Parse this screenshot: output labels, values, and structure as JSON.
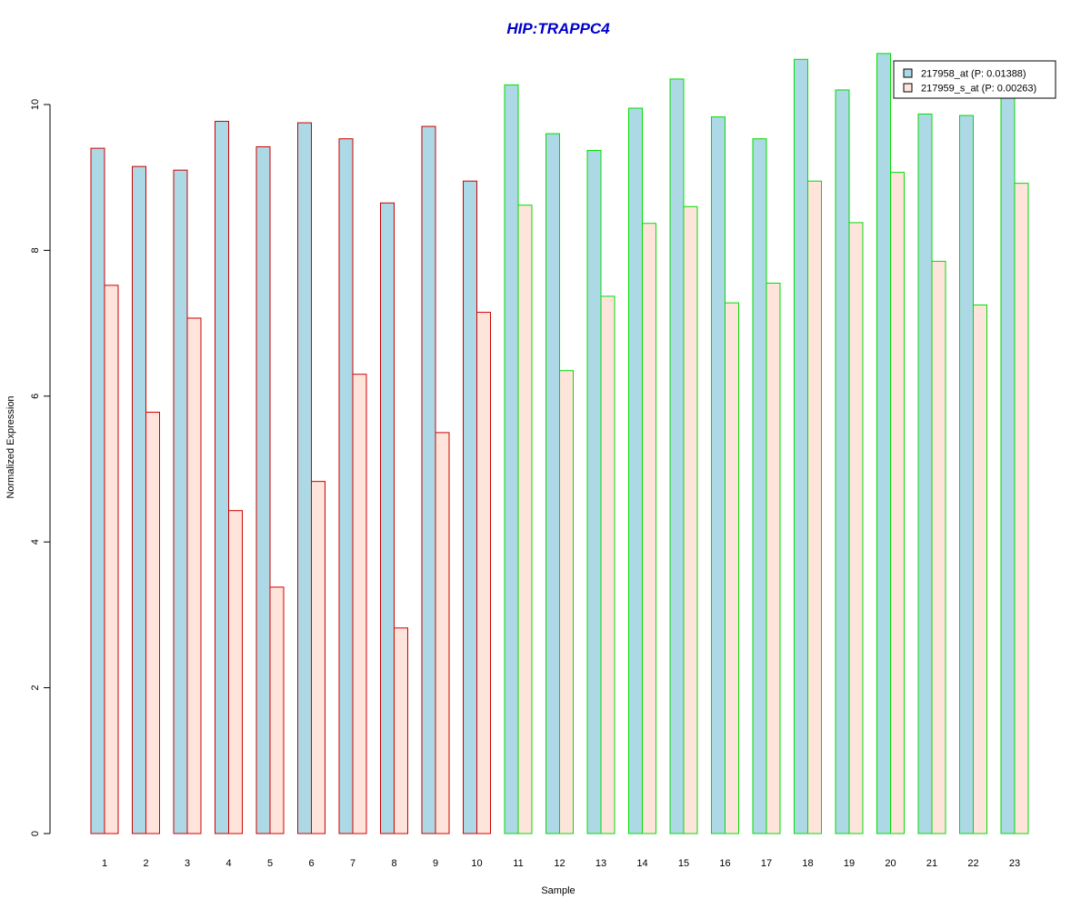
{
  "chart_data": {
    "type": "bar",
    "title": "HIP:TRAPPC4",
    "xlabel": "Sample",
    "ylabel": "Normalized Expression",
    "ylim": [
      0,
      10.8
    ],
    "y_ticks": [
      0,
      2,
      4,
      6,
      8,
      10
    ],
    "grid": false,
    "legend_position": "top-right",
    "categories": [
      "1",
      "2",
      "3",
      "4",
      "5",
      "6",
      "7",
      "8",
      "9",
      "10",
      "11",
      "12",
      "13",
      "14",
      "15",
      "16",
      "17",
      "18",
      "19",
      "20",
      "21",
      "22",
      "23"
    ],
    "group_colors": {
      "group1": {
        "samples": [
          "1",
          "2",
          "3",
          "4",
          "5",
          "6",
          "7",
          "8",
          "9",
          "10"
        ],
        "border": "#cc0000"
      },
      "group2": {
        "samples": [
          "11",
          "12",
          "13",
          "14",
          "15",
          "16",
          "17",
          "18",
          "19",
          "20",
          "21",
          "22",
          "23"
        ],
        "border": "#00dd00"
      }
    },
    "series": [
      {
        "name": "217958_at (P: 0.01388)",
        "fill": "#add8e6",
        "values": [
          9.4,
          9.15,
          9.1,
          9.77,
          9.42,
          9.75,
          9.53,
          8.65,
          9.7,
          8.95,
          10.27,
          9.6,
          9.37,
          9.95,
          10.35,
          9.83,
          9.53,
          10.62,
          10.2,
          10.7,
          9.87,
          9.85,
          10.1
        ]
      },
      {
        "name": "217959_s_at (P: 0.00263)",
        "fill": "#ffe4dc",
        "values": [
          7.52,
          5.78,
          7.07,
          4.43,
          3.38,
          4.83,
          6.3,
          2.82,
          5.5,
          7.15,
          8.62,
          6.35,
          7.37,
          8.37,
          8.6,
          7.28,
          7.55,
          8.95,
          8.38,
          9.07,
          7.85,
          7.25,
          8.92
        ]
      }
    ]
  },
  "colors": {
    "title": "#0000cc",
    "axis": "#000000"
  }
}
